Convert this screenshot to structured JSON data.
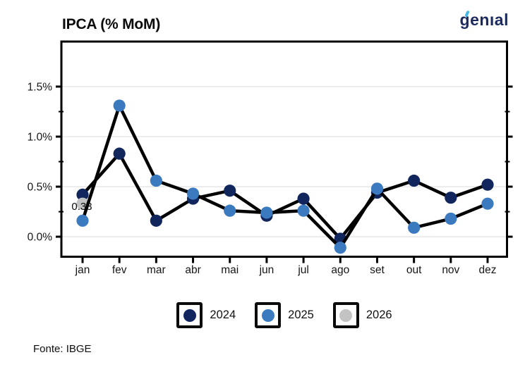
{
  "header": {
    "title": "IPCA (% MoM)",
    "logo_text": "genıal"
  },
  "footer": {
    "source": "Fonte: IBGE"
  },
  "legend": {
    "items": [
      {
        "label": "2024",
        "color": "#12265e"
      },
      {
        "label": "2025",
        "color": "#3b7abf"
      },
      {
        "label": "2026",
        "color": "#c3c3c3"
      }
    ]
  },
  "chart_data": {
    "type": "line",
    "title": "IPCA (% MoM)",
    "categories": [
      "jan",
      "fev",
      "mar",
      "abr",
      "mai",
      "jun",
      "jul",
      "ago",
      "set",
      "out",
      "nov",
      "dez"
    ],
    "series": [
      {
        "name": "2024",
        "color": "#12265e",
        "values": [
          0.42,
          0.83,
          0.16,
          0.38,
          0.46,
          0.21,
          0.38,
          -0.02,
          0.44,
          0.56,
          0.39,
          0.52
        ]
      },
      {
        "name": "2025",
        "color": "#3b7abf",
        "values": [
          0.16,
          1.31,
          0.56,
          0.43,
          0.26,
          0.24,
          0.26,
          -0.11,
          0.48,
          0.09,
          0.18,
          0.33
        ]
      },
      {
        "name": "2026",
        "color": "#c3c3c3",
        "values": [
          0.33,
          null,
          null,
          null,
          null,
          null,
          null,
          null,
          null,
          null,
          null,
          null
        ]
      }
    ],
    "annotation": {
      "text": "0.33",
      "series": "2026",
      "month": "jan",
      "value": 0.33
    },
    "y_ticks": [
      {
        "value": 0.0,
        "label": "0.0%"
      },
      {
        "value": 0.5,
        "label": "0.5%"
      },
      {
        "value": 1.0,
        "label": "1.0%"
      },
      {
        "value": 1.5,
        "label": "1.5%"
      }
    ],
    "y_minor_ticks": [
      0.25,
      0.75,
      1.25
    ],
    "ylim": [
      -0.2,
      1.95
    ],
    "xlabel": "",
    "ylabel": "",
    "grid": true,
    "line_color": "#000000",
    "grid_color": "#e8e8e8",
    "legend_position": "bottom"
  }
}
